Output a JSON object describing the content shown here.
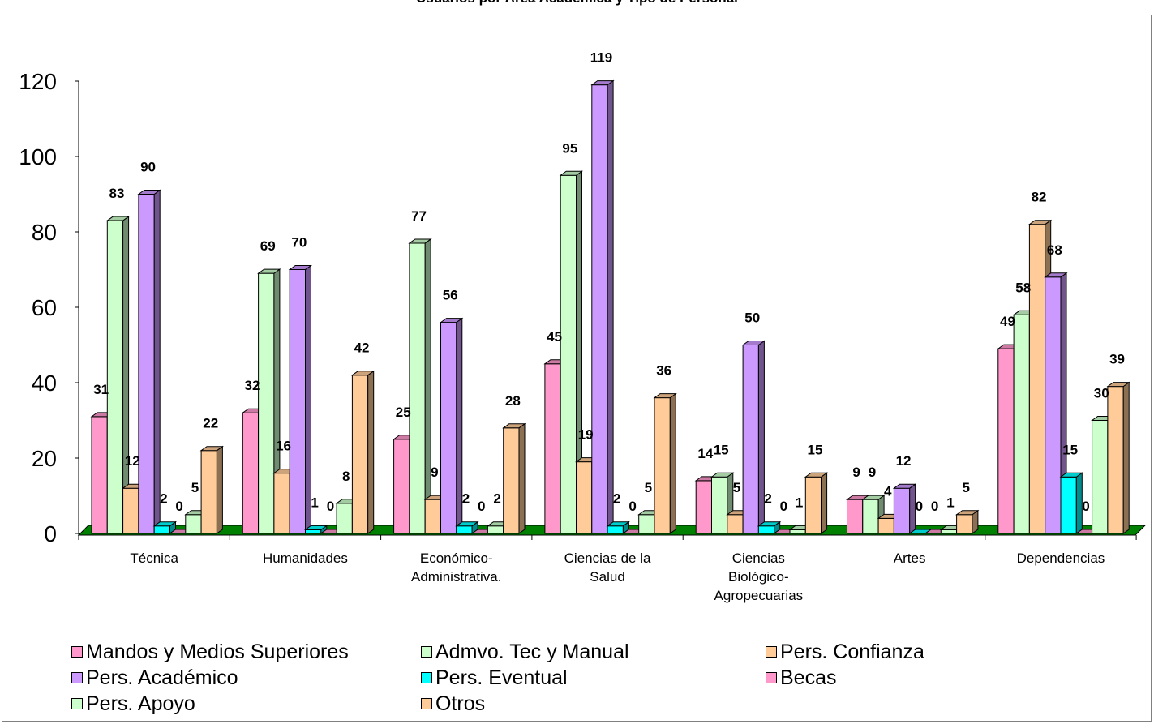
{
  "chart_data": {
    "type": "bar",
    "title": "Usuarios por Área Académica y Tipo de Personal",
    "categories": [
      "Técnica",
      "Humanidades",
      "Económico-Administrativa.",
      "Ciencias de la Salud",
      "Ciencias Biológico-Agropecuarias",
      "Artes",
      "Dependencias"
    ],
    "category_lines": [
      [
        "Técnica"
      ],
      [
        "Humanidades"
      ],
      [
        "Económico-",
        "Administrativa."
      ],
      [
        "Ciencias de la",
        "Salud"
      ],
      [
        "Ciencias",
        "Biológico-",
        "Agropecuarias"
      ],
      [
        "Artes"
      ],
      [
        "Dependencias"
      ]
    ],
    "series": [
      {
        "name": "Mandos y Medios Superiores",
        "color": "#FF99CC",
        "values": [
          31,
          32,
          25,
          45,
          14,
          9,
          49
        ]
      },
      {
        "name": "Admvo. Tec y Manual",
        "color": "#CCFFCC",
        "values": [
          83,
          69,
          77,
          95,
          15,
          9,
          58
        ]
      },
      {
        "name": "Pers. Confianza",
        "color": "#FFCC99",
        "values": [
          12,
          16,
          9,
          19,
          5,
          4,
          82
        ]
      },
      {
        "name": "Pers. Académico",
        "color": "#CC99FF",
        "values": [
          90,
          70,
          56,
          119,
          50,
          12,
          68
        ]
      },
      {
        "name": "Pers. Eventual",
        "color": "#00FFFF",
        "values": [
          2,
          1,
          2,
          2,
          2,
          0,
          15
        ]
      },
      {
        "name": "Becas",
        "color": "#FF99CC",
        "values": [
          0,
          0,
          0,
          0,
          0,
          0,
          0
        ]
      },
      {
        "name": "Pers. Apoyo",
        "color": "#CCFFCC",
        "values": [
          5,
          8,
          2,
          5,
          1,
          1,
          30
        ]
      },
      {
        "name": "Otros",
        "color": "#FFCC99",
        "values": [
          22,
          42,
          28,
          36,
          15,
          5,
          39
        ]
      }
    ],
    "ylim": [
      0,
      120
    ],
    "yticks": [
      0,
      20,
      40,
      60,
      80,
      100,
      120
    ],
    "floor_color": "#008000",
    "grid": false,
    "legend_position": "bottom"
  }
}
